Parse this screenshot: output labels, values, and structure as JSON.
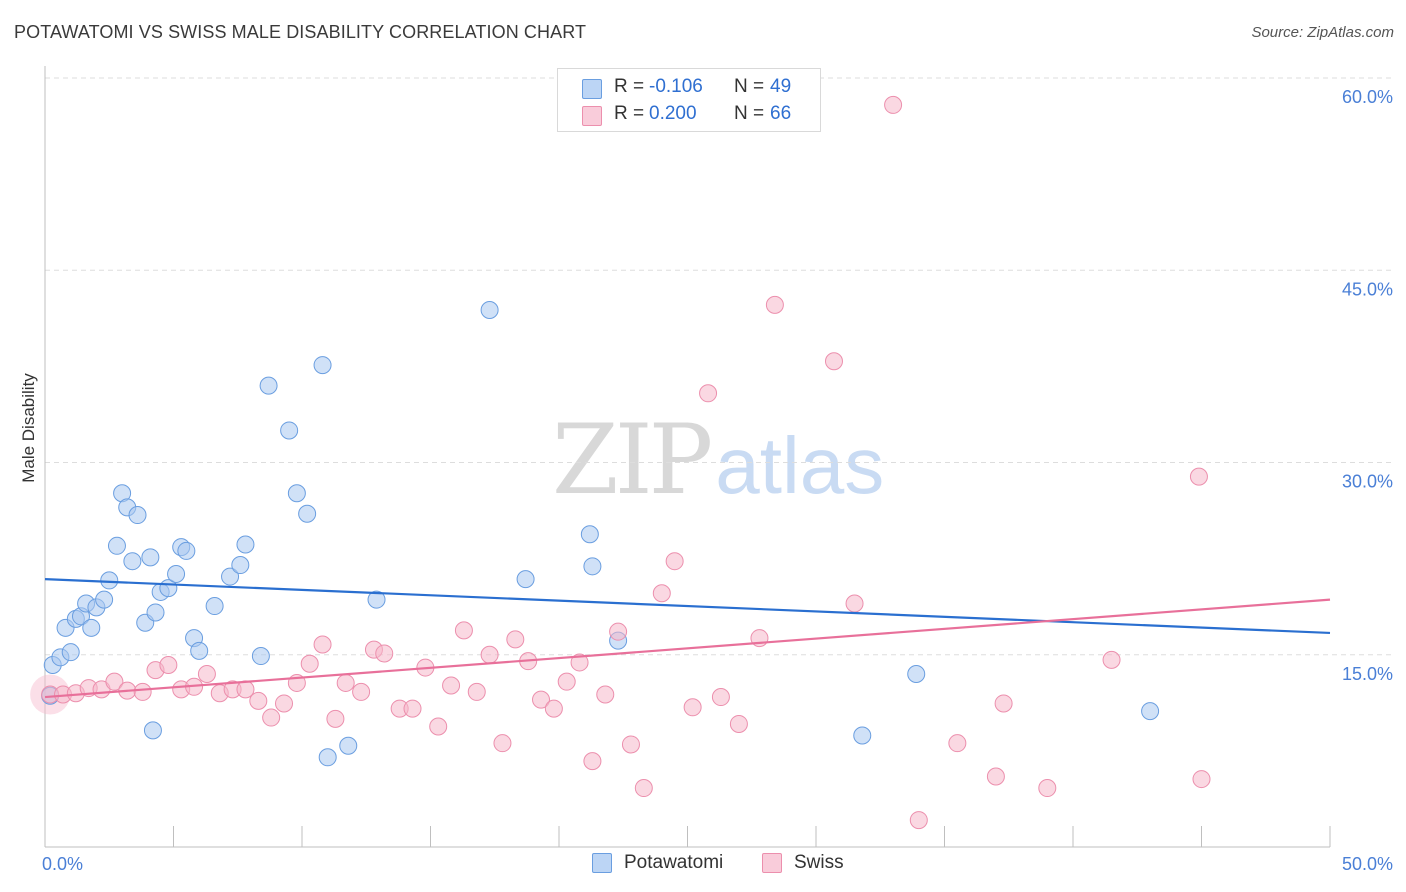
{
  "header": {
    "title": "POTAWATOMI VS SWISS MALE DISABILITY CORRELATION CHART",
    "source": "Source: ZipAtlas.com"
  },
  "watermark": {
    "part1": "ZIP",
    "part2": "atlas"
  },
  "legend": {
    "rows": [
      {
        "r_label": "R =",
        "r_value": "-0.106",
        "n_label": "N =",
        "n_value": "49",
        "color": "#a9c8f0"
      },
      {
        "r_label": "R =",
        "r_value": "0.200",
        "n_label": "N =",
        "n_value": "66",
        "color": "#f6b8cb"
      }
    ]
  },
  "bottom_legend": [
    {
      "label": "Potawatomi",
      "color": "#a9c8f0"
    },
    {
      "label": "Swiss",
      "color": "#f6b8cb"
    }
  ],
  "colors": {
    "blue_point": "#a9c8f0",
    "blue_stroke": "#6a9ee0",
    "blue_line": "#2a6fd0",
    "pink_point": "#f6b8cb",
    "pink_stroke": "#ec8fad",
    "pink_line": "#e8709a",
    "tick_text": "#4a7fd6",
    "grid": "#dddddd"
  },
  "chart_data": {
    "type": "scatter",
    "title": "POTAWATOMI VS SWISS MALE DISABILITY CORRELATION CHART",
    "xlabel": "",
    "ylabel": "Male Disability",
    "xlim": [
      0,
      50
    ],
    "ylim": [
      0,
      60
    ],
    "x_tick_labels": [
      "0.0%",
      "50.0%"
    ],
    "y_ticks": [
      15,
      30,
      45,
      60
    ],
    "y_tick_labels": [
      "15.0%",
      "30.0%",
      "45.0%",
      "60.0%"
    ],
    "x_minor_ticks": [
      0,
      5,
      10,
      15,
      20,
      25,
      30,
      35,
      40,
      45,
      50
    ],
    "grid": true,
    "legend_position": "top-center",
    "series": [
      {
        "name": "Potawatomi",
        "r": -0.106,
        "n": 49,
        "trend": {
          "x": [
            0,
            50
          ],
          "y": [
            20.9,
            16.7
          ]
        },
        "points": [
          [
            0.2,
            11.8
          ],
          [
            0.3,
            14.2
          ],
          [
            0.6,
            14.8
          ],
          [
            0.8,
            17.1
          ],
          [
            1.0,
            15.2
          ],
          [
            1.2,
            17.8
          ],
          [
            1.4,
            18.0
          ],
          [
            1.6,
            19.0
          ],
          [
            1.8,
            17.1
          ],
          [
            2.0,
            18.7
          ],
          [
            2.3,
            19.3
          ],
          [
            2.5,
            20.8
          ],
          [
            2.8,
            23.5
          ],
          [
            3.0,
            27.6
          ],
          [
            3.2,
            26.5
          ],
          [
            3.4,
            22.3
          ],
          [
            3.6,
            25.9
          ],
          [
            3.9,
            17.5
          ],
          [
            4.1,
            22.6
          ],
          [
            4.3,
            18.3
          ],
          [
            4.5,
            19.9
          ],
          [
            4.8,
            20.2
          ],
          [
            5.1,
            21.3
          ],
          [
            5.3,
            23.4
          ],
          [
            5.5,
            23.1
          ],
          [
            5.8,
            16.3
          ],
          [
            6.0,
            15.3
          ],
          [
            6.6,
            18.8
          ],
          [
            7.2,
            21.1
          ],
          [
            7.6,
            22.0
          ],
          [
            7.8,
            23.6
          ],
          [
            8.4,
            14.9
          ],
          [
            8.7,
            36.0
          ],
          [
            9.5,
            32.5
          ],
          [
            9.8,
            27.6
          ],
          [
            10.2,
            26.0
          ],
          [
            10.8,
            37.6
          ],
          [
            11.0,
            7.0
          ],
          [
            11.8,
            7.9
          ],
          [
            12.9,
            19.3
          ],
          [
            17.3,
            41.9
          ],
          [
            18.7,
            20.9
          ],
          [
            21.2,
            24.4
          ],
          [
            21.3,
            21.9
          ],
          [
            22.3,
            16.1
          ],
          [
            31.8,
            8.7
          ],
          [
            33.9,
            13.5
          ],
          [
            43.0,
            10.6
          ],
          [
            4.2,
            9.1
          ]
        ]
      },
      {
        "name": "Swiss",
        "r": 0.2,
        "n": 66,
        "trend": {
          "x": [
            0,
            50
          ],
          "y": [
            11.7,
            19.3
          ]
        },
        "points": [
          [
            0.2,
            11.9
          ],
          [
            0.7,
            11.9
          ],
          [
            1.2,
            12.0
          ],
          [
            1.7,
            12.4
          ],
          [
            2.2,
            12.3
          ],
          [
            2.7,
            12.9
          ],
          [
            3.2,
            12.2
          ],
          [
            3.8,
            12.1
          ],
          [
            4.3,
            13.8
          ],
          [
            4.8,
            14.2
          ],
          [
            5.3,
            12.3
          ],
          [
            5.8,
            12.5
          ],
          [
            6.3,
            13.5
          ],
          [
            6.8,
            12.0
          ],
          [
            7.3,
            12.3
          ],
          [
            7.8,
            12.3
          ],
          [
            8.3,
            11.4
          ],
          [
            8.8,
            10.1
          ],
          [
            9.3,
            11.2
          ],
          [
            9.8,
            12.8
          ],
          [
            10.3,
            14.3
          ],
          [
            10.8,
            15.8
          ],
          [
            11.3,
            10.0
          ],
          [
            11.7,
            12.8
          ],
          [
            12.3,
            12.1
          ],
          [
            12.8,
            15.4
          ],
          [
            13.2,
            15.1
          ],
          [
            13.8,
            10.8
          ],
          [
            14.3,
            10.8
          ],
          [
            14.8,
            14.0
          ],
          [
            15.3,
            9.4
          ],
          [
            15.8,
            12.6
          ],
          [
            16.3,
            16.9
          ],
          [
            16.8,
            12.1
          ],
          [
            17.3,
            15.0
          ],
          [
            17.8,
            8.1
          ],
          [
            18.3,
            16.2
          ],
          [
            18.8,
            14.5
          ],
          [
            19.3,
            11.5
          ],
          [
            19.8,
            10.8
          ],
          [
            20.3,
            12.9
          ],
          [
            20.8,
            14.4
          ],
          [
            21.3,
            6.7
          ],
          [
            21.8,
            11.9
          ],
          [
            22.3,
            16.8
          ],
          [
            22.8,
            8.0
          ],
          [
            23.3,
            4.6
          ],
          [
            24.0,
            19.8
          ],
          [
            24.5,
            22.3
          ],
          [
            25.2,
            10.9
          ],
          [
            25.8,
            35.4
          ],
          [
            26.3,
            11.7
          ],
          [
            27.0,
            9.6
          ],
          [
            27.8,
            16.3
          ],
          [
            28.4,
            42.3
          ],
          [
            30.7,
            37.9
          ],
          [
            31.5,
            19.0
          ],
          [
            33.0,
            57.9
          ],
          [
            34.0,
            2.1
          ],
          [
            35.5,
            8.1
          ],
          [
            37.0,
            5.5
          ],
          [
            37.3,
            11.2
          ],
          [
            39.0,
            4.6
          ],
          [
            41.5,
            14.6
          ],
          [
            44.9,
            28.9
          ],
          [
            45.0,
            5.3
          ]
        ]
      }
    ]
  }
}
